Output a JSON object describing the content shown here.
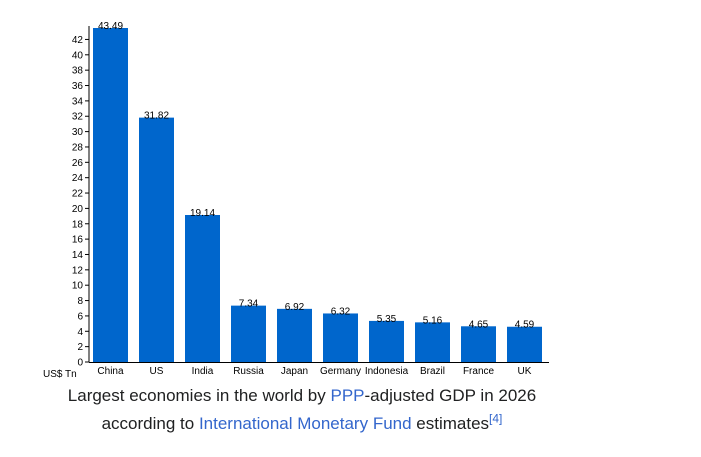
{
  "chart_data": {
    "type": "bar",
    "categories": [
      "China",
      "US",
      "India",
      "Russia",
      "Japan",
      "Germany",
      "Indonesia",
      "Brazil",
      "France",
      "UK"
    ],
    "values": [
      43.49,
      31.82,
      19.14,
      7.34,
      6.92,
      6.32,
      5.35,
      5.16,
      4.65,
      4.59
    ],
    "value_labels": [
      "43.49",
      "31.82",
      "19.14",
      "7.34",
      "6.92",
      "6.32",
      "5.35",
      "5.16",
      "4.65",
      "4.59"
    ],
    "ylabel": "US$ Tn",
    "ylim": [
      0,
      43.49
    ],
    "yticks": [
      0,
      2,
      4,
      6,
      8,
      10,
      12,
      14,
      16,
      18,
      20,
      22,
      24,
      26,
      28,
      30,
      32,
      34,
      36,
      38,
      40,
      42
    ],
    "grid": false,
    "bar_color": "#0066cc"
  },
  "caption": {
    "line1_before": "Largest economies in the world by ",
    "line1_link": "PPP",
    "line1_after": "-adjusted GDP in 2026",
    "line2_before": "according to ",
    "line2_link": "International Monetary Fund",
    "line2_after": " estimates",
    "ref": "[4]"
  }
}
